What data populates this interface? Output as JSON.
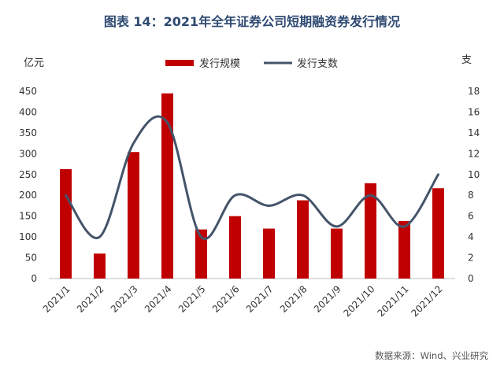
{
  "figure_title": "图表 14：2021年全年证券公司短期融资券发行情况",
  "source_note": "数据来源：Wind、兴业研究",
  "chart_data": {
    "type": "bar",
    "categories": [
      "2021/1",
      "2021/2",
      "2021/3",
      "2021/4",
      "2021/5",
      "2021/6",
      "2021/7",
      "2021/8",
      "2021/9",
      "2021/10",
      "2021/11",
      "2021/12"
    ],
    "series": [
      {
        "name": "发行规模",
        "type": "bar",
        "axis": "left",
        "color": "#c00000",
        "values": [
          263,
          60,
          304,
          445,
          118,
          150,
          120,
          188,
          120,
          229,
          138,
          217
        ]
      },
      {
        "name": "发行支数",
        "type": "line",
        "axis": "right",
        "color": "#44546a",
        "values": [
          8,
          4,
          13,
          15,
          4,
          8,
          7,
          8,
          5,
          8,
          5,
          10
        ]
      }
    ],
    "ylabel_left": "亿元",
    "ylabel_right": "支",
    "ylim_left": [
      0,
      450
    ],
    "yticks_left": [
      0,
      50,
      100,
      150,
      200,
      250,
      300,
      350,
      400,
      450
    ],
    "ylim_right": [
      0,
      18
    ],
    "yticks_right": [
      0,
      2,
      4,
      6,
      8,
      10,
      12,
      14,
      16,
      18
    ],
    "legend_position": "top-center",
    "grid": false
  }
}
